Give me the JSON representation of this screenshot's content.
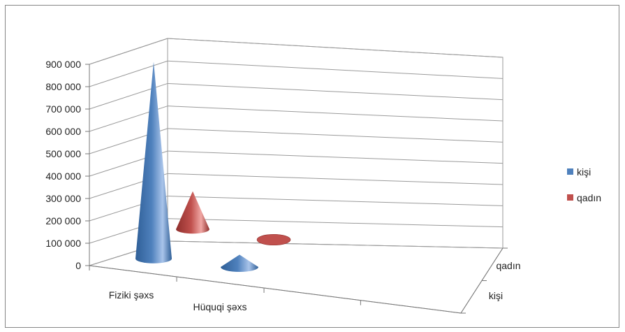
{
  "chart_data": {
    "type": "bar",
    "variant": "3d-cone",
    "categories": [
      "Fiziki şəxs",
      "Hüquqi şəxs"
    ],
    "depth_categories": [
      "kişi",
      "qadın"
    ],
    "series": [
      {
        "name": "kişi",
        "values": [
          880000,
          55000
        ],
        "color": "#4f81bd"
      },
      {
        "name": "qadın",
        "values": [
          170000,
          1500
        ],
        "color": "#c0504d"
      }
    ],
    "ylim": [
      0,
      900000
    ],
    "yticks": [
      "0",
      "100 000",
      "200 000",
      "300 000",
      "400 000",
      "500 000",
      "600 000",
      "700 000",
      "800 000",
      "900 000"
    ],
    "grid": true,
    "legend": "right",
    "title": "",
    "xlabel": "",
    "ylabel": ""
  }
}
